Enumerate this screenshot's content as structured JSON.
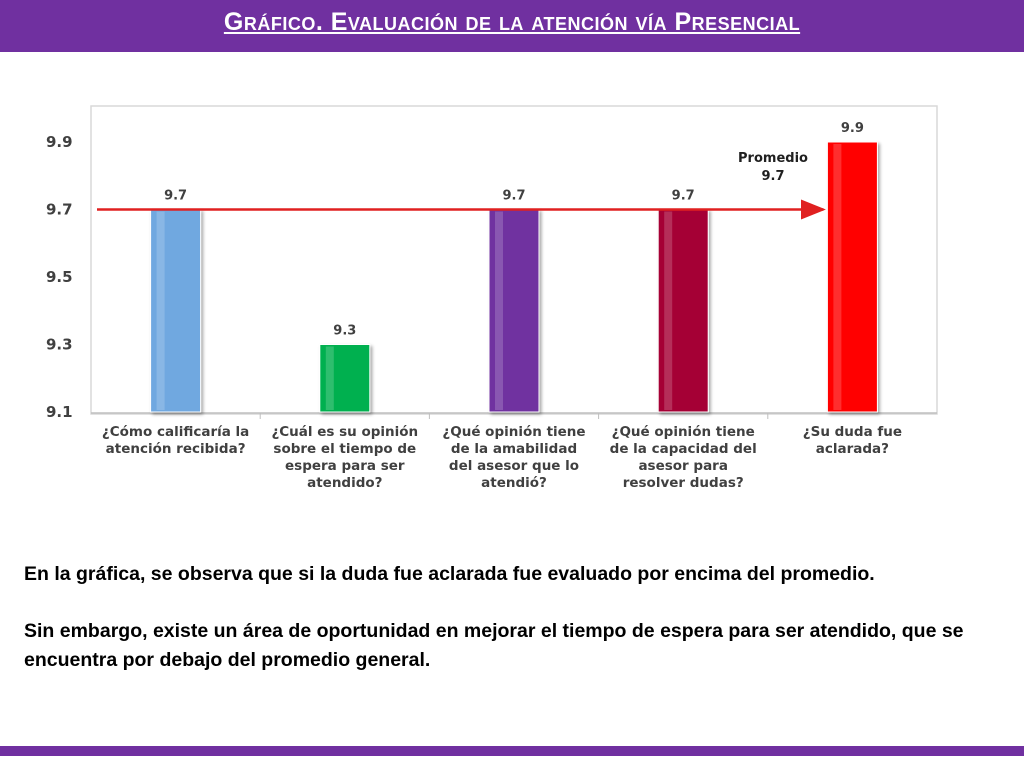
{
  "header": {
    "title": "Gráfico. Evaluación de la atención vía Presencial"
  },
  "chart_data": {
    "type": "bar",
    "categories": [
      [
        "¿Cómo calificaría la",
        "atención recibida?"
      ],
      [
        "¿Cuál es su opinión",
        "sobre el tiempo de",
        "espera para ser",
        "atendido?"
      ],
      [
        "¿Qué opinión tiene",
        "de la amabilidad",
        "del asesor que lo",
        "atendió?"
      ],
      [
        "¿Qué opinión tiene",
        "de la capacidad del",
        "asesor para",
        "resolver dudas?"
      ],
      [
        "¿Su duda fue",
        "aclarada?"
      ]
    ],
    "values": [
      9.7,
      9.3,
      9.7,
      9.7,
      9.9
    ],
    "value_labels": [
      "9.7",
      "9.3",
      "9.7",
      "9.7",
      "9.9"
    ],
    "bar_colors": [
      "#6fa8e0",
      "#00b050",
      "#7030a0",
      "#a50034",
      "#ff0000"
    ],
    "ylim": [
      9.1,
      10.0
    ],
    "yticks": [
      "9.1",
      "9.3",
      "9.5",
      "9.7",
      "9.9"
    ],
    "average": {
      "value": 9.7,
      "label": [
        "Promedio",
        "9.7"
      ],
      "color": "#e02020"
    },
    "grid": false
  },
  "summary": {
    "paragraph1": "En la gráfica, se observa que si la duda fue aclarada fue evaluado por encima del promedio.",
    "paragraph2": "Sin embargo, existe un área de oportunidad en mejorar el tiempo de espera para ser atendido, que se encuentra por debajo del promedio general."
  }
}
